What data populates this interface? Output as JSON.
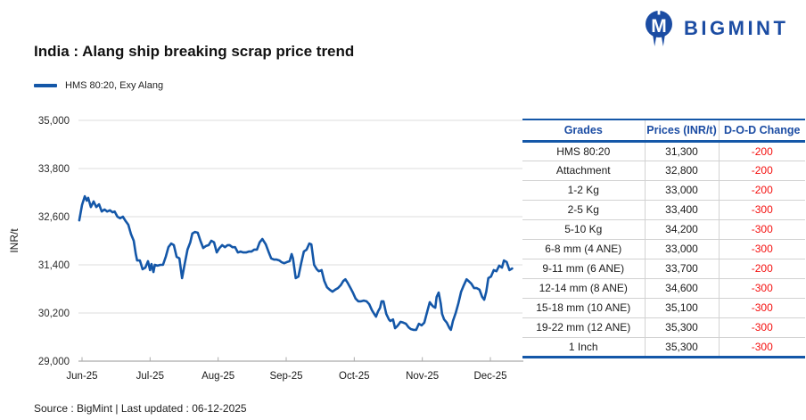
{
  "logo": {
    "text": "BIGMINT"
  },
  "title": "India : Alang ship breaking scrap price trend",
  "legend": {
    "label": "HMS 80:20, Exy Alang"
  },
  "footer": "Source : BigMint | Last updated : 06-12-2025",
  "colors": {
    "brand_blue": "#1b4ca3",
    "line_blue": "#1457a8",
    "negative_red": "#f4100f",
    "grid": "#dcdcdc",
    "axis": "#ababab",
    "text": "#1a1a1a"
  },
  "table": {
    "headers": [
      "Grades",
      "Prices (INR/t)",
      "D-O-D Change"
    ],
    "rows": [
      [
        "HMS 80:20",
        "31,300",
        "-200"
      ],
      [
        "Attachment",
        "32,800",
        "-200"
      ],
      [
        "1-2 Kg",
        "33,000",
        "-200"
      ],
      [
        "2-5 Kg",
        "33,400",
        "-300"
      ],
      [
        "5-10 Kg",
        "34,200",
        "-300"
      ],
      [
        "6-8 mm (4 ANE)",
        "33,000",
        "-300"
      ],
      [
        "9-11 mm (6 ANE)",
        "33,700",
        "-200"
      ],
      [
        "12-14 mm (8 ANE)",
        "34,600",
        "-300"
      ],
      [
        "15-18 mm (10 ANE)",
        "35,100",
        "-300"
      ],
      [
        "19-22 mm (12 ANE)",
        "35,300",
        "-300"
      ],
      [
        "1 Inch",
        "35,300",
        "-300"
      ]
    ]
  },
  "chart_data": {
    "type": "line",
    "title": "India : Alang ship breaking scrap price trend",
    "series_name": "HMS 80:20, Exy Alang",
    "xlabel": "",
    "ylabel": "INR/t",
    "ylim": [
      29000,
      35000
    ],
    "grid": true,
    "legend_position": "top-left",
    "x_ticks": [
      "Jun-25",
      "Jul-25",
      "Aug-25",
      "Sep-25",
      "Oct-25",
      "Nov-25",
      "Dec-25"
    ],
    "y_ticks": [
      {
        "v": 35000,
        "label": "35,000"
      },
      {
        "v": 33800,
        "label": "33,800"
      },
      {
        "v": 32600,
        "label": "32,600"
      },
      {
        "v": 31400,
        "label": "31,400"
      },
      {
        "v": 30200,
        "label": "30,200"
      },
      {
        "v": 29000,
        "label": "29,000"
      }
    ],
    "points_note": "x in months after Jun-25 tick, y in INR/t",
    "points": [
      [
        -0.04,
        32510
      ],
      [
        0,
        32890
      ],
      [
        0.04,
        33110
      ],
      [
        0.07,
        33000
      ],
      [
        0.09,
        33070
      ],
      [
        0.13,
        32840
      ],
      [
        0.17,
        32980
      ],
      [
        0.21,
        32840
      ],
      [
        0.25,
        32910
      ],
      [
        0.29,
        32730
      ],
      [
        0.33,
        32780
      ],
      [
        0.37,
        32730
      ],
      [
        0.41,
        32760
      ],
      [
        0.45,
        32710
      ],
      [
        0.48,
        32730
      ],
      [
        0.52,
        32600
      ],
      [
        0.56,
        32560
      ],
      [
        0.6,
        32600
      ],
      [
        0.64,
        32490
      ],
      [
        0.68,
        32400
      ],
      [
        0.72,
        32160
      ],
      [
        0.76,
        32000
      ],
      [
        0.79,
        31670
      ],
      [
        0.81,
        31510
      ],
      [
        0.85,
        31510
      ],
      [
        0.89,
        31290
      ],
      [
        0.93,
        31330
      ],
      [
        0.97,
        31490
      ],
      [
        1,
        31270
      ],
      [
        1.02,
        31420
      ],
      [
        1.05,
        31220
      ],
      [
        1.07,
        31400
      ],
      [
        1.11,
        31380
      ],
      [
        1.15,
        31400
      ],
      [
        1.19,
        31400
      ],
      [
        1.23,
        31600
      ],
      [
        1.27,
        31840
      ],
      [
        1.31,
        31930
      ],
      [
        1.35,
        31890
      ],
      [
        1.39,
        31600
      ],
      [
        1.43,
        31560
      ],
      [
        1.47,
        31070
      ],
      [
        1.51,
        31440
      ],
      [
        1.55,
        31780
      ],
      [
        1.59,
        31960
      ],
      [
        1.62,
        32180
      ],
      [
        1.66,
        32220
      ],
      [
        1.7,
        32200
      ],
      [
        1.74,
        32000
      ],
      [
        1.78,
        31820
      ],
      [
        1.82,
        31870
      ],
      [
        1.86,
        31890
      ],
      [
        1.9,
        32000
      ],
      [
        1.94,
        31960
      ],
      [
        1.98,
        31710
      ],
      [
        2.02,
        31820
      ],
      [
        2.06,
        31890
      ],
      [
        2.1,
        31840
      ],
      [
        2.14,
        31890
      ],
      [
        2.17,
        31890
      ],
      [
        2.21,
        31840
      ],
      [
        2.25,
        31840
      ],
      [
        2.29,
        31710
      ],
      [
        2.33,
        31730
      ],
      [
        2.37,
        31710
      ],
      [
        2.41,
        31710
      ],
      [
        2.45,
        31730
      ],
      [
        2.49,
        31730
      ],
      [
        2.53,
        31780
      ],
      [
        2.57,
        31780
      ],
      [
        2.61,
        31960
      ],
      [
        2.65,
        32045
      ],
      [
        2.7,
        31910
      ],
      [
        2.74,
        31730
      ],
      [
        2.78,
        31560
      ],
      [
        2.82,
        31530
      ],
      [
        2.86,
        31530
      ],
      [
        2.9,
        31510
      ],
      [
        2.93,
        31470
      ],
      [
        2.97,
        31440
      ],
      [
        3.01,
        31470
      ],
      [
        3.05,
        31490
      ],
      [
        3.08,
        31670
      ],
      [
        3.1,
        31560
      ],
      [
        3.14,
        31070
      ],
      [
        3.18,
        31110
      ],
      [
        3.22,
        31440
      ],
      [
        3.26,
        31730
      ],
      [
        3.3,
        31780
      ],
      [
        3.34,
        31930
      ],
      [
        3.37,
        31910
      ],
      [
        3.41,
        31400
      ],
      [
        3.45,
        31290
      ],
      [
        3.48,
        31240
      ],
      [
        3.52,
        31270
      ],
      [
        3.56,
        31000
      ],
      [
        3.6,
        30840
      ],
      [
        3.64,
        30780
      ],
      [
        3.68,
        30730
      ],
      [
        3.72,
        30780
      ],
      [
        3.76,
        30820
      ],
      [
        3.8,
        30890
      ],
      [
        3.84,
        31000
      ],
      [
        3.87,
        31040
      ],
      [
        3.9,
        30960
      ],
      [
        3.94,
        30840
      ],
      [
        3.98,
        30710
      ],
      [
        4.02,
        30560
      ],
      [
        4.06,
        30490
      ],
      [
        4.1,
        30490
      ],
      [
        4.14,
        30510
      ],
      [
        4.18,
        30490
      ],
      [
        4.22,
        30420
      ],
      [
        4.26,
        30270
      ],
      [
        4.3,
        30160
      ],
      [
        4.32,
        30110
      ],
      [
        4.35,
        30240
      ],
      [
        4.38,
        30330
      ],
      [
        4.4,
        30490
      ],
      [
        4.43,
        30490
      ],
      [
        4.47,
        30180
      ],
      [
        4.51,
        30040
      ],
      [
        4.53,
        30000
      ],
      [
        4.57,
        30040
      ],
      [
        4.6,
        29820
      ],
      [
        4.63,
        29870
      ],
      [
        4.65,
        29910
      ],
      [
        4.68,
        29980
      ],
      [
        4.72,
        29960
      ],
      [
        4.76,
        29930
      ],
      [
        4.8,
        29840
      ],
      [
        4.83,
        29800
      ],
      [
        4.87,
        29780
      ],
      [
        4.91,
        29780
      ],
      [
        4.95,
        29930
      ],
      [
        4.99,
        29890
      ],
      [
        5.03,
        29960
      ],
      [
        5.07,
        30220
      ],
      [
        5.11,
        30470
      ],
      [
        5.14,
        30400
      ],
      [
        5.16,
        30360
      ],
      [
        5.19,
        30330
      ],
      [
        5.21,
        30600
      ],
      [
        5.24,
        30710
      ],
      [
        5.27,
        30440
      ],
      [
        5.29,
        30180
      ],
      [
        5.32,
        30040
      ],
      [
        5.36,
        29960
      ],
      [
        5.4,
        29820
      ],
      [
        5.42,
        29780
      ],
      [
        5.45,
        30000
      ],
      [
        5.49,
        30200
      ],
      [
        5.53,
        30440
      ],
      [
        5.57,
        30730
      ],
      [
        5.61,
        30890
      ],
      [
        5.65,
        31040
      ],
      [
        5.69,
        30980
      ],
      [
        5.72,
        30930
      ],
      [
        5.76,
        30820
      ],
      [
        5.8,
        30820
      ],
      [
        5.84,
        30780
      ],
      [
        5.88,
        30600
      ],
      [
        5.91,
        30530
      ],
      [
        5.94,
        30730
      ],
      [
        5.97,
        31070
      ],
      [
        6.01,
        31110
      ],
      [
        6.05,
        31270
      ],
      [
        6.09,
        31240
      ],
      [
        6.13,
        31380
      ],
      [
        6.17,
        31330
      ],
      [
        6.2,
        31510
      ],
      [
        6.24,
        31470
      ],
      [
        6.28,
        31270
      ],
      [
        6.32,
        31310
      ]
    ]
  }
}
